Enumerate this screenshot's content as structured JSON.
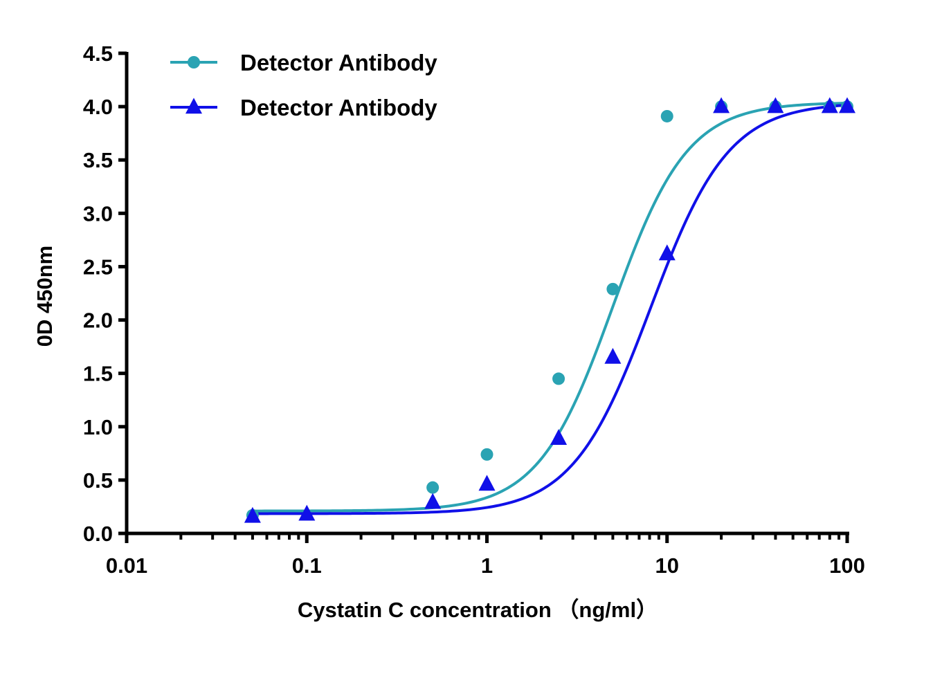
{
  "chart_data": {
    "type": "scatter",
    "title": "",
    "xlabel": "Cystatin C concentration （ng/ml）",
    "ylabel": "0D 450nm",
    "xscale": "log",
    "xlim": [
      0.01,
      100
    ],
    "ylim": [
      0,
      4.5
    ],
    "x_tick_labels": [
      "0.01",
      "0.1",
      "1",
      "10",
      "100"
    ],
    "x_tick_values": [
      0.01,
      0.1,
      1,
      10,
      100
    ],
    "y_tick_labels": [
      "0.0",
      "0.5",
      "1.0",
      "1.5",
      "2.0",
      "2.5",
      "3.0",
      "3.5",
      "4.0",
      "4.5"
    ],
    "y_tick_values": [
      0,
      0.5,
      1,
      1.5,
      2,
      2.5,
      3,
      3.5,
      4,
      4.5
    ],
    "grid": false,
    "legend_position": "top-left",
    "series": [
      {
        "name": "Detector Antibody",
        "marker": "circle",
        "color": "#2aa3b3",
        "points": [
          {
            "x": 0.05,
            "y": 0.17
          },
          {
            "x": 0.5,
            "y": 0.43
          },
          {
            "x": 1,
            "y": 0.74
          },
          {
            "x": 2.5,
            "y": 1.45
          },
          {
            "x": 5,
            "y": 2.29
          },
          {
            "x": 10,
            "y": 3.91
          },
          {
            "x": 20,
            "y": 4.0
          },
          {
            "x": 40,
            "y": 4.0
          },
          {
            "x": 80,
            "y": 4.0
          },
          {
            "x": 100,
            "y": 4.0
          }
        ],
        "fit": {
          "bottom": 0.21,
          "top": 4.04,
          "ec50": 5.0,
          "hill": 2.1
        }
      },
      {
        "name": "Detector Antibody",
        "marker": "triangle",
        "color": "#1010e8",
        "points": [
          {
            "x": 0.05,
            "y": 0.16
          },
          {
            "x": 0.1,
            "y": 0.18
          },
          {
            "x": 0.5,
            "y": 0.29
          },
          {
            "x": 1,
            "y": 0.46
          },
          {
            "x": 2.5,
            "y": 0.89
          },
          {
            "x": 5,
            "y": 1.65
          },
          {
            "x": 10,
            "y": 2.62
          },
          {
            "x": 20,
            "y": 4.0
          },
          {
            "x": 40,
            "y": 4.0
          },
          {
            "x": 80,
            "y": 4.0
          },
          {
            "x": 100,
            "y": 4.0
          }
        ],
        "fit": {
          "bottom": 0.185,
          "top": 4.04,
          "ec50": 8.1,
          "hill": 2.0
        }
      }
    ]
  }
}
